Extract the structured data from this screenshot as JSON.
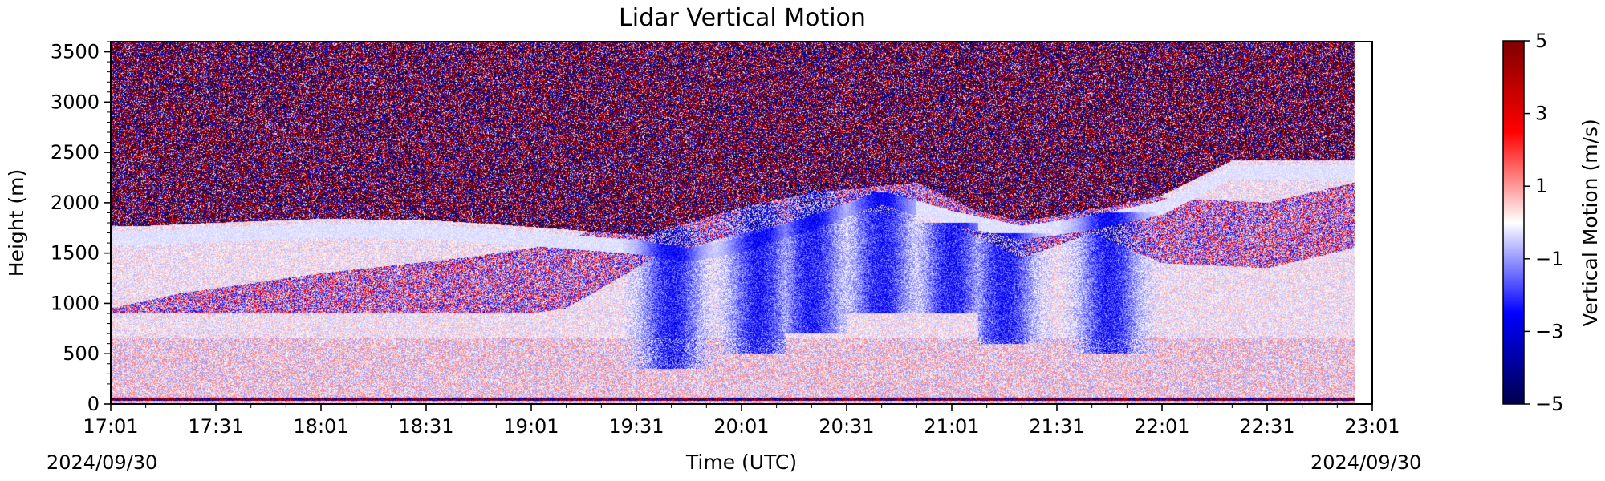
{
  "chart_data": {
    "type": "heatmap",
    "title": "Lidar Vertical Motion",
    "xlabel": "Time (UTC)",
    "ylabel": "Height (m)",
    "x_ticks": [
      "17:01",
      "17:31",
      "18:01",
      "18:31",
      "19:01",
      "19:31",
      "20:01",
      "20:31",
      "21:01",
      "21:31",
      "22:01",
      "22:31",
      "23:01"
    ],
    "x_tick_minutes": [
      0,
      30,
      60,
      90,
      120,
      150,
      180,
      210,
      240,
      270,
      300,
      330,
      360
    ],
    "xlim_minutes": [
      0,
      360
    ],
    "date_left": "2024/09/30",
    "date_right": "2024/09/30",
    "y_ticks": [
      0,
      500,
      1000,
      1500,
      2000,
      2500,
      3000,
      3500
    ],
    "ylim": [
      0,
      3600
    ],
    "colorbar": {
      "label": "Vertical Motion (m/s)",
      "ticks": [
        "5",
        "3",
        "1",
        "−1",
        "−3",
        "−5"
      ],
      "tick_values": [
        5,
        3,
        1,
        -1,
        -3,
        -5
      ],
      "range": [
        -5,
        5
      ],
      "colormap": "seismic",
      "colors": [
        "#00004c",
        "#0000ff",
        "#ffffff",
        "#ff0000",
        "#7f0000"
      ]
    },
    "data_coverage_end_minutes": 355,
    "features": {
      "cloud_layer_height_m": [
        [
          10,
          1650
        ],
        [
          30,
          1680
        ],
        [
          60,
          1720
        ],
        [
          90,
          1710
        ],
        [
          120,
          1640
        ],
        [
          150,
          1560
        ],
        [
          165,
          1480
        ],
        [
          180,
          1580
        ],
        [
          200,
          1800
        ],
        [
          220,
          2050
        ],
        [
          240,
          1850
        ],
        [
          260,
          1700
        ],
        [
          280,
          1800
        ],
        [
          300,
          1950
        ],
        [
          320,
          2300
        ],
        [
          355,
          2300
        ]
      ],
      "noise_top_m": [
        [
          0,
          550
        ],
        [
          20,
          700
        ],
        [
          60,
          900
        ],
        [
          100,
          1050
        ],
        [
          130,
          1200
        ],
        [
          155,
          1700
        ],
        [
          180,
          1950
        ],
        [
          200,
          2100
        ],
        [
          230,
          2200
        ],
        [
          260,
          1700
        ],
        [
          280,
          1950
        ],
        [
          300,
          1650
        ],
        [
          330,
          1600
        ],
        [
          355,
          1800
        ]
      ],
      "downdrafts": [
        {
          "t": 160,
          "bottom_m": 350,
          "top_m": 1750
        },
        {
          "t": 185,
          "bottom_m": 500,
          "top_m": 2000
        },
        {
          "t": 200,
          "bottom_m": 700,
          "top_m": 2200
        },
        {
          "t": 220,
          "bottom_m": 900,
          "top_m": 2100
        },
        {
          "t": 240,
          "bottom_m": 900,
          "top_m": 1800
        },
        {
          "t": 255,
          "bottom_m": 600,
          "top_m": 1700
        },
        {
          "t": 285,
          "bottom_m": 500,
          "top_m": 1900
        }
      ],
      "near_surface_band_m": 50
    }
  }
}
